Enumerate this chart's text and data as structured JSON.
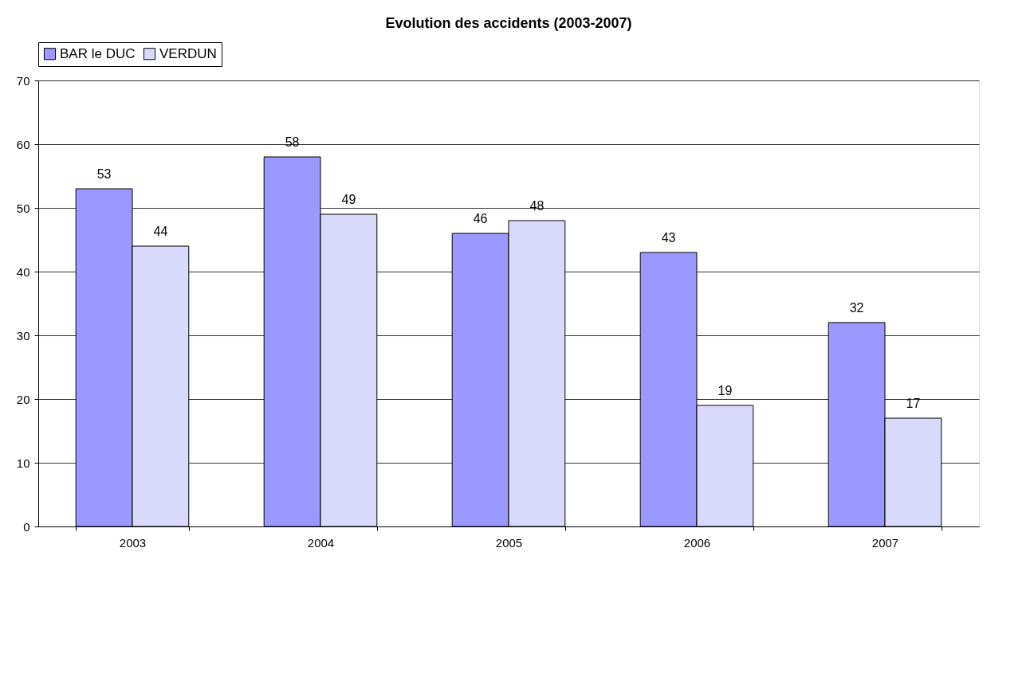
{
  "chart_data": {
    "type": "bar",
    "title": "Evolution des accidents (2003-2007)",
    "categories": [
      "2003",
      "2004",
      "2005",
      "2006",
      "2007"
    ],
    "series": [
      {
        "name": "BAR le DUC",
        "color": "#9999ff",
        "values": [
          53,
          58,
          46,
          43,
          32
        ]
      },
      {
        "name": "VERDUN",
        "color": "#d9d9fb",
        "values": [
          44,
          49,
          48,
          19,
          17
        ]
      }
    ],
    "ylim": [
      0,
      70
    ],
    "yticks": [
      0,
      10,
      20,
      30,
      40,
      50,
      60,
      70
    ],
    "grid": "y",
    "legend": "top",
    "data_labels": true
  }
}
